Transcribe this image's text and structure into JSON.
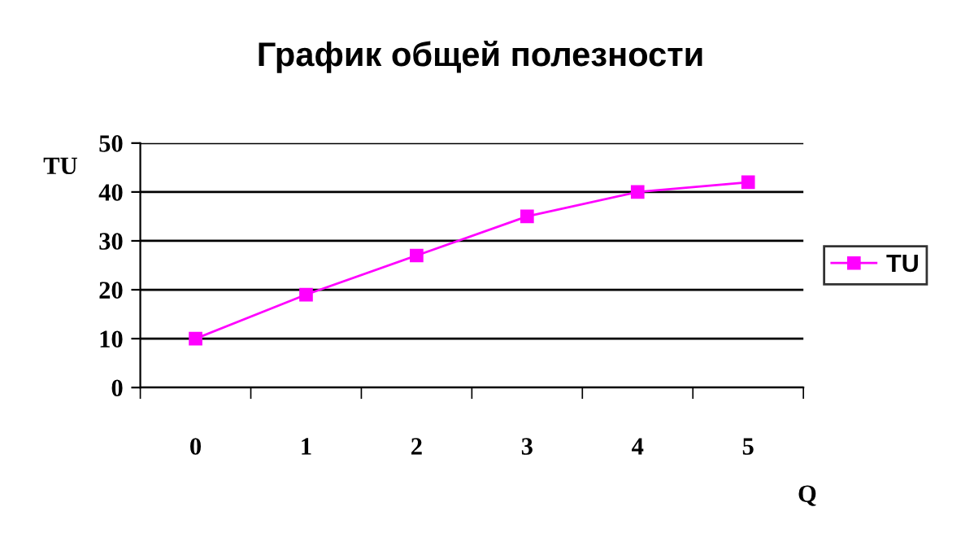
{
  "chart_data": {
    "type": "line",
    "title": "График общей полезности",
    "xlabel": "Q",
    "ylabel": "TU",
    "categories": [
      "0",
      "1",
      "2",
      "3",
      "4",
      "5"
    ],
    "series": [
      {
        "name": "TU",
        "color": "#ff00ff",
        "values": [
          10,
          19,
          27,
          35,
          40,
          42
        ]
      }
    ],
    "ylim": [
      0,
      50
    ],
    "yticks": [
      0,
      10,
      20,
      30,
      40,
      50
    ],
    "grid": "y",
    "legend": "right",
    "marker": "square",
    "line_style": "solid"
  }
}
